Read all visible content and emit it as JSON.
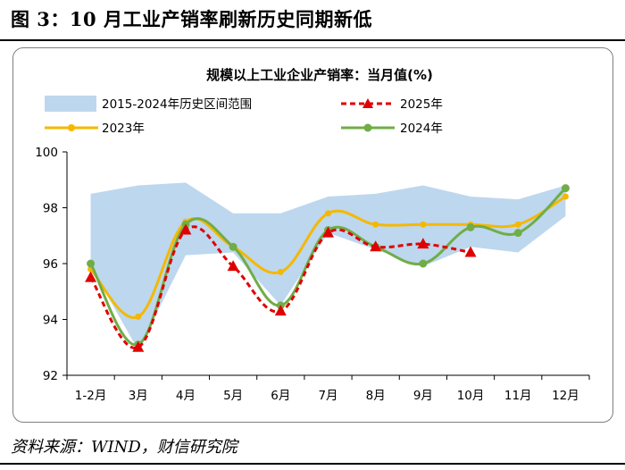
{
  "figure": {
    "title": "图 3：10 月工业产销率刷新历史同期新低",
    "source": "资料来源：WIND，财信研究院"
  },
  "chart_data": {
    "type": "line",
    "title": "规模以上工业企业产销率：当月值(%)",
    "categories": [
      "1-2月",
      "3月",
      "4月",
      "5月",
      "6月",
      "7月",
      "8月",
      "9月",
      "10月",
      "11月",
      "12月"
    ],
    "ylim": [
      92,
      100
    ],
    "yticks": [
      92,
      94,
      96,
      98,
      100
    ],
    "band": {
      "name": "2015-2024年历史区间范围",
      "upper": [
        98.5,
        98.8,
        98.9,
        97.8,
        97.8,
        98.4,
        98.5,
        98.8,
        98.4,
        98.3,
        98.8
      ],
      "lower": [
        95.9,
        92.9,
        96.3,
        96.4,
        94.5,
        97.1,
        96.5,
        95.9,
        96.6,
        96.4,
        97.7
      ],
      "color": "#bdd7ee"
    },
    "series": [
      {
        "name": "2025年",
        "values": [
          95.5,
          93.0,
          97.2,
          95.9,
          94.3,
          97.1,
          96.6,
          96.7,
          96.4,
          null,
          null
        ],
        "color": "#e00000",
        "style": "dashed",
        "marker": "triangle"
      },
      {
        "name": "2023年",
        "values": [
          95.8,
          94.1,
          97.5,
          96.6,
          95.7,
          97.8,
          97.4,
          97.4,
          97.4,
          97.4,
          98.4
        ],
        "color": "#f5b800",
        "style": "solid",
        "marker": "circle"
      },
      {
        "name": "2024年",
        "values": [
          96.0,
          93.1,
          97.4,
          96.6,
          94.5,
          97.2,
          96.6,
          96.0,
          97.3,
          97.1,
          98.7
        ],
        "color": "#70ad47",
        "style": "solid",
        "marker": "circle"
      }
    ]
  }
}
